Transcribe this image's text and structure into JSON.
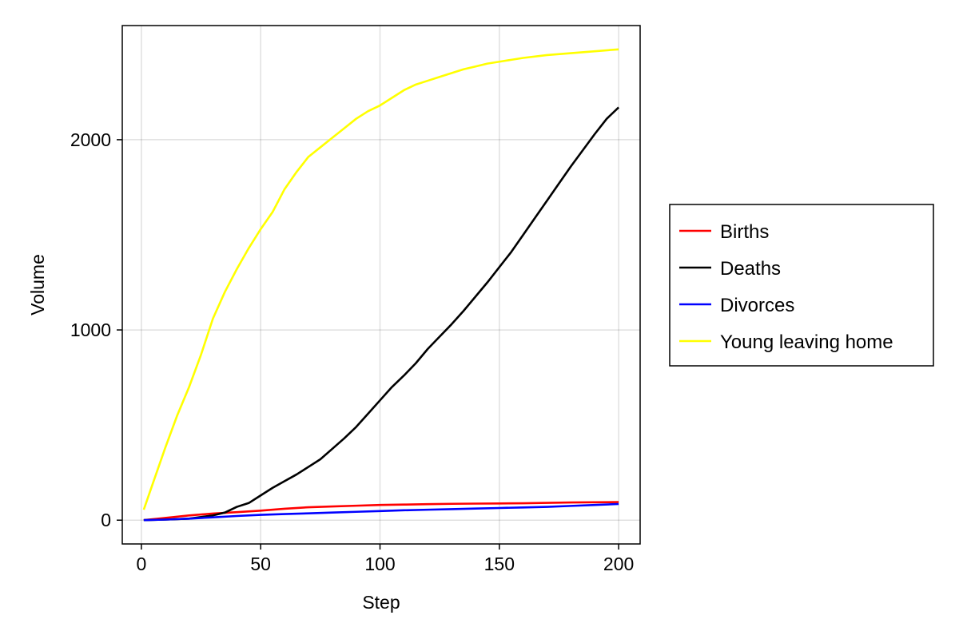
{
  "chart_data": {
    "type": "line",
    "title": "",
    "xlabel": "Step",
    "ylabel": "Volume",
    "xlim": [
      -8,
      209
    ],
    "ylim": [
      -125,
      2600
    ],
    "xticks": [
      0,
      50,
      100,
      150,
      200
    ],
    "yticks": [
      0,
      1000,
      2000
    ],
    "grid": true,
    "legend_position": "right",
    "series": [
      {
        "name": "Births",
        "color": "#ff0000",
        "points": [
          [
            1,
            0
          ],
          [
            10,
            12
          ],
          [
            20,
            25
          ],
          [
            30,
            35
          ],
          [
            40,
            42
          ],
          [
            50,
            50
          ],
          [
            60,
            60
          ],
          [
            70,
            68
          ],
          [
            80,
            72
          ],
          [
            90,
            76
          ],
          [
            100,
            80
          ],
          [
            110,
            82
          ],
          [
            120,
            84
          ],
          [
            130,
            86
          ],
          [
            140,
            87
          ],
          [
            150,
            88
          ],
          [
            160,
            89
          ],
          [
            170,
            91
          ],
          [
            180,
            93
          ],
          [
            190,
            94
          ],
          [
            200,
            95
          ]
        ]
      },
      {
        "name": "Deaths",
        "color": "#000000",
        "points": [
          [
            1,
            0
          ],
          [
            10,
            3
          ],
          [
            20,
            8
          ],
          [
            30,
            25
          ],
          [
            35,
            40
          ],
          [
            40,
            70
          ],
          [
            45,
            90
          ],
          [
            50,
            130
          ],
          [
            55,
            170
          ],
          [
            60,
            205
          ],
          [
            65,
            240
          ],
          [
            70,
            280
          ],
          [
            75,
            320
          ],
          [
            80,
            375
          ],
          [
            85,
            430
          ],
          [
            90,
            490
          ],
          [
            95,
            560
          ],
          [
            100,
            630
          ],
          [
            105,
            700
          ],
          [
            110,
            760
          ],
          [
            115,
            825
          ],
          [
            120,
            900
          ],
          [
            125,
            965
          ],
          [
            130,
            1030
          ],
          [
            135,
            1100
          ],
          [
            140,
            1175
          ],
          [
            145,
            1250
          ],
          [
            150,
            1330
          ],
          [
            155,
            1410
          ],
          [
            160,
            1500
          ],
          [
            165,
            1590
          ],
          [
            170,
            1680
          ],
          [
            175,
            1770
          ],
          [
            180,
            1860
          ],
          [
            185,
            1945
          ],
          [
            190,
            2030
          ],
          [
            195,
            2110
          ],
          [
            200,
            2170
          ]
        ]
      },
      {
        "name": "Divorces",
        "color": "#0000ff",
        "points": [
          [
            1,
            0
          ],
          [
            10,
            3
          ],
          [
            20,
            8
          ],
          [
            30,
            15
          ],
          [
            40,
            22
          ],
          [
            50,
            28
          ],
          [
            60,
            32
          ],
          [
            70,
            36
          ],
          [
            80,
            40
          ],
          [
            90,
            44
          ],
          [
            100,
            48
          ],
          [
            110,
            52
          ],
          [
            120,
            55
          ],
          [
            130,
            58
          ],
          [
            140,
            61
          ],
          [
            150,
            64
          ],
          [
            160,
            67
          ],
          [
            170,
            70
          ],
          [
            180,
            75
          ],
          [
            190,
            80
          ],
          [
            200,
            85
          ]
        ]
      },
      {
        "name": "Young leaving home",
        "color": "#ffff00",
        "points": [
          [
            1,
            55
          ],
          [
            5,
            200
          ],
          [
            10,
            380
          ],
          [
            15,
            550
          ],
          [
            20,
            700
          ],
          [
            25,
            870
          ],
          [
            30,
            1060
          ],
          [
            35,
            1200
          ],
          [
            40,
            1320
          ],
          [
            45,
            1430
          ],
          [
            50,
            1530
          ],
          [
            55,
            1620
          ],
          [
            60,
            1740
          ],
          [
            65,
            1830
          ],
          [
            70,
            1910
          ],
          [
            75,
            1960
          ],
          [
            80,
            2010
          ],
          [
            85,
            2060
          ],
          [
            90,
            2110
          ],
          [
            95,
            2150
          ],
          [
            100,
            2180
          ],
          [
            105,
            2220
          ],
          [
            110,
            2260
          ],
          [
            115,
            2290
          ],
          [
            120,
            2310
          ],
          [
            125,
            2330
          ],
          [
            130,
            2350
          ],
          [
            135,
            2370
          ],
          [
            140,
            2385
          ],
          [
            145,
            2400
          ],
          [
            150,
            2410
          ],
          [
            155,
            2420
          ],
          [
            160,
            2430
          ],
          [
            170,
            2445
          ],
          [
            180,
            2455
          ],
          [
            190,
            2465
          ],
          [
            200,
            2475
          ]
        ]
      }
    ]
  }
}
